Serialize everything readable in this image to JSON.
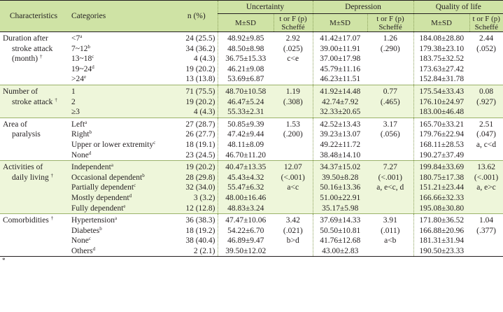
{
  "headers": {
    "characteristics": "Characteristics",
    "categories": "Categories",
    "n": "n (%)",
    "uncertainty": "Uncertainty",
    "depression": "Depression",
    "qol": "Quality of life",
    "msd": "M±SD",
    "stat_line1": "t or F (p)",
    "stat_line2": "Scheffé"
  },
  "groups": [
    {
      "label_lines": [
        "Duration after",
        "stroke attack",
        "(month)"
      ],
      "label_mark": "†",
      "categories": [
        [
          "<7",
          "a"
        ],
        [
          "7~12",
          "b"
        ],
        [
          "13~18",
          "c"
        ],
        [
          "19~24",
          "d"
        ],
        [
          ">24",
          "e"
        ]
      ],
      "n": [
        "24 (25.5)",
        "34 (36.2)",
        "4 (4.3)",
        "19 (20.2)",
        "13 (13.8)"
      ],
      "unc": [
        "48.92±9.85",
        "48.50±8.98",
        "36.75±15.33",
        "46.21±9.08",
        "53.69±6.87"
      ],
      "unc_stat": [
        "2.92",
        "(.025)",
        "c<e"
      ],
      "dep": [
        "41.42±17.07",
        "39.00±11.91",
        "37.00±17.98",
        "45.79±11.16",
        "46.23±11.51"
      ],
      "dep_stat": [
        "1.26",
        "(.290)"
      ],
      "qol": [
        "184.08±28.80",
        "179.38±23.10",
        "183.75±32.52",
        "173.63±27.42",
        "152.84±31.78"
      ],
      "qol_stat": [
        "2.44",
        "(.052)"
      ]
    },
    {
      "label_lines": [
        "Number of",
        "stroke attack"
      ],
      "label_mark": "†",
      "categories": [
        [
          "1",
          ""
        ],
        [
          "2",
          ""
        ],
        [
          "≥3",
          ""
        ]
      ],
      "n": [
        "71 (75.5)",
        "19 (20.2)",
        "4 (4.3)"
      ],
      "unc": [
        "48.70±10.58",
        "46.47±5.24",
        "55.33±2.31"
      ],
      "unc_stat": [
        "1.19",
        "(.308)"
      ],
      "dep": [
        "41.92±14.48",
        "42.74±7.92",
        "32.33±20.65"
      ],
      "dep_stat": [
        "0.77",
        "(.465)"
      ],
      "qol": [
        "175.54±33.43",
        "176.10±24.97",
        "183.00±46.48"
      ],
      "qol_stat": [
        "0.08",
        "(.927)"
      ]
    },
    {
      "label_lines": [
        "Area of",
        "paralysis"
      ],
      "label_mark": "",
      "categories": [
        [
          "Left",
          "a"
        ],
        [
          "Right",
          "b"
        ],
        [
          "Upper or lower extremity",
          "c"
        ],
        [
          "None",
          "d"
        ]
      ],
      "n": [
        "27 (28.7)",
        "26 (27.7)",
        "18 (19.1)",
        "23 (24.5)"
      ],
      "unc": [
        "50.85±9.39",
        "47.42±9.44",
        "48.11±8.09",
        "46.70±11.20"
      ],
      "unc_stat": [
        "1.53",
        "(.200)"
      ],
      "dep": [
        "42.52±13.43",
        "39.23±13.07",
        "49.22±11.72",
        "38.48±14.10"
      ],
      "dep_stat": [
        "3.17",
        "(.056)"
      ],
      "qol": [
        "165.70±33.21",
        "179.76±22.94",
        "168.11±28.53",
        "190.27±37.49"
      ],
      "qol_stat": [
        "2.51",
        "(.047)",
        "a, c<d"
      ]
    },
    {
      "label_lines": [
        "Activities of",
        "daily living"
      ],
      "label_mark": "†",
      "categories": [
        [
          "Independent",
          "a"
        ],
        [
          "Occasional dependent",
          "b"
        ],
        [
          "Partially dependent",
          "c"
        ],
        [
          "Mostly dependent",
          "d"
        ],
        [
          "Fully dependent",
          "e"
        ]
      ],
      "n": [
        "19 (20.2)",
        "28 (29.8)",
        "32 (34.0)",
        "3 (3.2)",
        "12 (12.8)"
      ],
      "unc": [
        "40.47±13.35",
        "45.43±4.32",
        "55.47±6.32",
        "48.00±16.46",
        "48.83±3.24"
      ],
      "unc_stat": [
        "12.07",
        "(<.001)",
        "a<c"
      ],
      "dep": [
        "34.37±15.02",
        "39.50±8.28",
        "50.16±13.36",
        "51.00±22.91",
        "35.17±5.98"
      ],
      "dep_stat": [
        "7.27",
        "(<.001)",
        "a, e<c, d"
      ],
      "qol": [
        "199.84±33.69",
        "180.75±17.38",
        "151.21±23.44",
        "166.66±32.33",
        "195.08±30.80"
      ],
      "qol_stat": [
        "13.62",
        "(<.001)",
        "a, e>c"
      ]
    },
    {
      "label_lines": [
        "Comorbidities"
      ],
      "label_mark": "†",
      "categories": [
        [
          "Hypertension",
          "a"
        ],
        [
          "Diabetes",
          "b"
        ],
        [
          "None",
          "c"
        ],
        [
          "Others",
          "d"
        ]
      ],
      "n": [
        "36 (38.3)",
        "18 (19.2)",
        "38 (40.4)",
        "2 (2.1)"
      ],
      "unc": [
        "47.47±10.06",
        "54.22±6.70",
        "46.89±9.47",
        "39.50±12.02"
      ],
      "unc_stat": [
        "3.42",
        "(.021)",
        "b>d"
      ],
      "dep": [
        "37.69±14.33",
        "50.50±10.81",
        "41.76±12.68",
        "43.00±2.83"
      ],
      "dep_stat": [
        "3.91",
        "(.011)",
        "a<b"
      ],
      "qol": [
        "171.80±36.52",
        "166.88±20.96",
        "181.31±31.94",
        "190.50±23.33"
      ],
      "qol_stat": [
        "1.04",
        "(.377)"
      ]
    }
  ],
  "footnote": "*"
}
